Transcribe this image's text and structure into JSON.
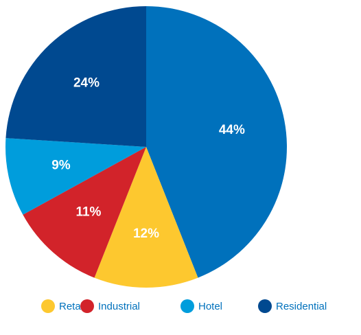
{
  "chart_data": {
    "type": "pie",
    "categories": [
      null,
      "Retail",
      "Industrial",
      "Hotel",
      "Residential"
    ],
    "values": [
      44,
      12,
      11,
      9,
      24
    ],
    "value_labels": [
      "44%",
      "12%",
      "11%",
      "9%",
      "24%"
    ],
    "colors": [
      "#0071bc",
      "#fdc82f",
      "#d2232a",
      "#009ddc",
      "#004990"
    ],
    "legend": "bottom"
  }
}
